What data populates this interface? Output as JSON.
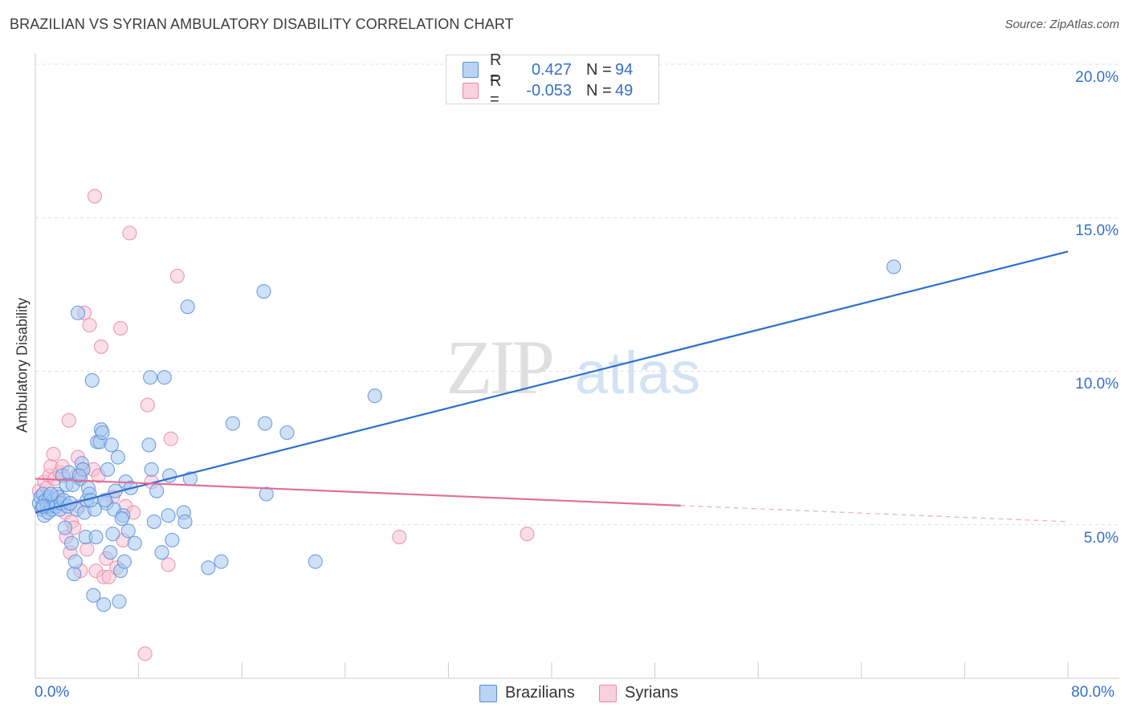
{
  "title": "BRAZILIAN VS SYRIAN AMBULATORY DISABILITY CORRELATION CHART",
  "source": "Source: ZipAtlas.com",
  "watermark": {
    "zip": "ZIP",
    "atlas": "atlas"
  },
  "legend": {
    "rows": [
      {
        "r_label": "R =",
        "r_value": "0.427",
        "n_label": "N =",
        "n_value": "94"
      },
      {
        "r_label": "R =",
        "r_value": "-0.053",
        "n_label": "N =",
        "n_value": "49"
      }
    ]
  },
  "colors": {
    "blue_fill": "#a8c8f0",
    "blue_stroke": "#5b8fd8",
    "blue_line": "#2c6fce",
    "pink_fill": "#f7c3d3",
    "pink_stroke": "#e88aa8",
    "pink_line": "#e0709a",
    "tick_text": "#3470c6",
    "grid": "#e0e0e0"
  },
  "chart_data": {
    "type": "scatter",
    "title": "BRAZILIAN VS SYRIAN AMBULATORY DISABILITY CORRELATION CHART",
    "xlabel": "",
    "ylabel": "Ambulatory Disability",
    "xlim": [
      0,
      80
    ],
    "ylim": [
      0,
      20
    ],
    "x_tick_labels": [
      "0.0%",
      "80.0%"
    ],
    "y_ticks": [
      5,
      10,
      15,
      20
    ],
    "y_tick_labels": [
      "5.0%",
      "10.0%",
      "15.0%",
      "20.0%"
    ],
    "series": [
      {
        "name": "Brazilians",
        "R": 0.427,
        "N": 94,
        "trend": {
          "x": [
            0.0,
            80.0
          ],
          "y": [
            5.4,
            13.9
          ],
          "solid_until": 80.0
        },
        "points": [
          [
            0.3,
            5.7
          ],
          [
            0.4,
            5.9
          ],
          [
            0.5,
            5.5
          ],
          [
            0.6,
            6.0
          ],
          [
            0.7,
            5.3
          ],
          [
            0.8,
            5.8
          ],
          [
            0.9,
            5.6
          ],
          [
            1.0,
            5.4
          ],
          [
            1.1,
            5.9
          ],
          [
            1.2,
            5.6
          ],
          [
            1.3,
            5.5
          ],
          [
            1.4,
            5.8
          ],
          [
            1.5,
            5.7
          ],
          [
            1.6,
            5.6
          ],
          [
            1.7,
            6.0
          ],
          [
            1.8,
            5.9
          ],
          [
            1.9,
            5.5
          ],
          [
            2.0,
            5.7
          ],
          [
            2.1,
            6.6
          ],
          [
            2.2,
            5.8
          ],
          [
            2.3,
            4.9
          ],
          [
            2.4,
            6.3
          ],
          [
            2.5,
            5.6
          ],
          [
            2.6,
            6.7
          ],
          [
            2.8,
            4.4
          ],
          [
            2.9,
            6.3
          ],
          [
            3.0,
            3.4
          ],
          [
            3.1,
            3.8
          ],
          [
            3.2,
            5.5
          ],
          [
            3.3,
            11.9
          ],
          [
            3.5,
            6.5
          ],
          [
            3.6,
            7.0
          ],
          [
            3.7,
            6.8
          ],
          [
            3.8,
            5.4
          ],
          [
            3.9,
            4.6
          ],
          [
            4.0,
            5.8
          ],
          [
            4.1,
            6.2
          ],
          [
            4.2,
            6.0
          ],
          [
            4.4,
            9.7
          ],
          [
            4.5,
            2.7
          ],
          [
            4.6,
            5.5
          ],
          [
            4.7,
            4.6
          ],
          [
            4.8,
            7.7
          ],
          [
            5.0,
            7.7
          ],
          [
            5.1,
            8.1
          ],
          [
            5.2,
            8.0
          ],
          [
            5.3,
            2.4
          ],
          [
            5.5,
            5.7
          ],
          [
            5.6,
            6.8
          ],
          [
            5.8,
            4.1
          ],
          [
            5.9,
            7.6
          ],
          [
            6.0,
            4.7
          ],
          [
            6.1,
            5.5
          ],
          [
            6.2,
            6.1
          ],
          [
            6.4,
            7.2
          ],
          [
            6.5,
            2.5
          ],
          [
            6.6,
            3.5
          ],
          [
            6.8,
            5.3
          ],
          [
            6.9,
            3.8
          ],
          [
            7.0,
            6.4
          ],
          [
            7.2,
            4.8
          ],
          [
            7.4,
            6.2
          ],
          [
            7.7,
            4.4
          ],
          [
            8.8,
            7.6
          ],
          [
            8.9,
            9.8
          ],
          [
            9.0,
            6.8
          ],
          [
            9.2,
            5.1
          ],
          [
            9.4,
            6.1
          ],
          [
            9.8,
            4.1
          ],
          [
            10.0,
            9.8
          ],
          [
            10.3,
            5.3
          ],
          [
            10.4,
            6.6
          ],
          [
            10.6,
            4.5
          ],
          [
            11.5,
            5.4
          ],
          [
            11.6,
            5.1
          ],
          [
            11.8,
            12.1
          ],
          [
            12.0,
            6.5
          ],
          [
            13.4,
            3.6
          ],
          [
            14.4,
            3.8
          ],
          [
            15.3,
            8.3
          ],
          [
            17.7,
            12.6
          ],
          [
            17.8,
            8.3
          ],
          [
            17.9,
            6.0
          ],
          [
            19.5,
            8.0
          ],
          [
            21.7,
            3.8
          ],
          [
            26.3,
            9.2
          ],
          [
            66.5,
            13.4
          ],
          [
            0.6,
            5.6
          ],
          [
            1.2,
            6.0
          ],
          [
            2.7,
            5.7
          ],
          [
            3.4,
            6.6
          ],
          [
            4.3,
            5.8
          ],
          [
            5.4,
            5.8
          ],
          [
            6.7,
            5.2
          ]
        ]
      },
      {
        "name": "Syrians",
        "R": -0.053,
        "N": 49,
        "trend": {
          "x": [
            0.0,
            80.0
          ],
          "y": [
            6.5,
            5.1
          ],
          "solid_until": 50.0
        },
        "points": [
          [
            0.3,
            6.1
          ],
          [
            0.5,
            5.6
          ],
          [
            0.7,
            6.4
          ],
          [
            0.9,
            6.2
          ],
          [
            1.0,
            5.8
          ],
          [
            1.1,
            6.6
          ],
          [
            1.2,
            6.9
          ],
          [
            1.4,
            7.3
          ],
          [
            1.5,
            6.5
          ],
          [
            1.7,
            5.8
          ],
          [
            1.9,
            6.7
          ],
          [
            2.1,
            6.9
          ],
          [
            2.3,
            5.4
          ],
          [
            2.4,
            4.6
          ],
          [
            2.6,
            8.4
          ],
          [
            2.7,
            4.1
          ],
          [
            2.8,
            5.1
          ],
          [
            3.0,
            4.9
          ],
          [
            3.2,
            6.6
          ],
          [
            3.3,
            7.2
          ],
          [
            3.4,
            5.6
          ],
          [
            3.5,
            3.5
          ],
          [
            3.7,
            6.8
          ],
          [
            3.8,
            11.9
          ],
          [
            4.0,
            4.2
          ],
          [
            4.2,
            11.5
          ],
          [
            4.5,
            6.8
          ],
          [
            4.7,
            3.5
          ],
          [
            4.9,
            6.6
          ],
          [
            5.1,
            10.8
          ],
          [
            5.3,
            3.3
          ],
          [
            5.5,
            3.9
          ],
          [
            5.7,
            3.3
          ],
          [
            6.0,
            5.9
          ],
          [
            6.3,
            3.6
          ],
          [
            6.6,
            11.4
          ],
          [
            6.8,
            4.5
          ],
          [
            7.0,
            5.6
          ],
          [
            7.3,
            14.5
          ],
          [
            7.6,
            5.4
          ],
          [
            8.5,
            0.8
          ],
          [
            8.7,
            8.9
          ],
          [
            9.0,
            6.4
          ],
          [
            10.3,
            3.7
          ],
          [
            10.5,
            7.8
          ],
          [
            11.0,
            13.1
          ],
          [
            4.6,
            15.7
          ],
          [
            28.2,
            4.6
          ],
          [
            38.1,
            4.7
          ]
        ]
      }
    ]
  },
  "bottom_legend": [
    "Brazilians",
    "Syrians"
  ]
}
